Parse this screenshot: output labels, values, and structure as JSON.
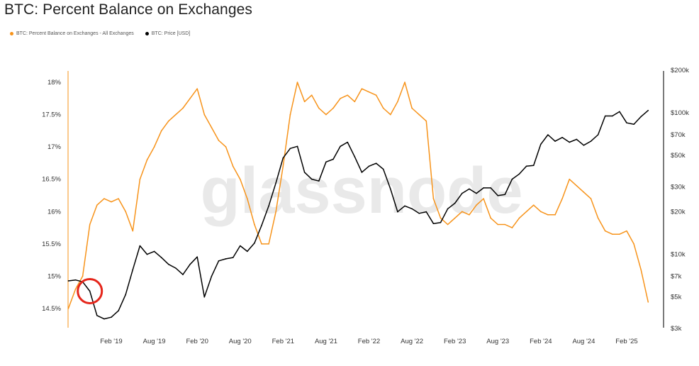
{
  "title": "BTC: Percent Balance on Exchanges",
  "watermark": "glassnode",
  "legend": [
    {
      "label": "BTC: Percent Balance on Exchanges - All Exchanges",
      "color": "#f7931a"
    },
    {
      "label": "BTC: Price [USD]",
      "color": "#000000"
    }
  ],
  "chart_data": {
    "type": "line",
    "title": "BTC: Percent Balance on Exchanges",
    "x_ticks": [
      "Feb '19",
      "Aug '19",
      "Feb '20",
      "Aug '20",
      "Feb '21",
      "Aug '21",
      "Feb '22",
      "Aug '22",
      "Feb '23",
      "Aug '23",
      "Feb '24",
      "Aug '24",
      "Feb '25"
    ],
    "x_range": [
      "2018-08",
      "2025-06"
    ],
    "left_axis": {
      "ticks": [
        "18%",
        "17.5%",
        "17%",
        "16.5%",
        "16%",
        "15.5%",
        "15%",
        "14.5%"
      ],
      "range": [
        14.5,
        18.2
      ]
    },
    "right_axis": {
      "ticks": [
        "$200k",
        "$100k",
        "$70k",
        "$50k",
        "$30k",
        "$20k",
        "$10k",
        "$7k",
        "$5k",
        "$3k"
      ],
      "scale": "log",
      "range": [
        3000,
        200000
      ]
    },
    "annotation": {
      "type": "circle",
      "color": "#e5261b",
      "date": "2018-11"
    },
    "series": [
      {
        "name": "BTC: Percent Balance on Exchanges - All Exchanges",
        "color": "#f7931a",
        "axis": "left",
        "points": [
          [
            "2018-08",
            14.5
          ],
          [
            "2018-09",
            14.8
          ],
          [
            "2018-10",
            15.0
          ],
          [
            "2018-11",
            15.8
          ],
          [
            "2018-12",
            16.1
          ],
          [
            "2019-01",
            16.2
          ],
          [
            "2019-02",
            16.15
          ],
          [
            "2019-03",
            16.2
          ],
          [
            "2019-04",
            16.0
          ],
          [
            "2019-05",
            15.7
          ],
          [
            "2019-06",
            16.5
          ],
          [
            "2019-07",
            16.8
          ],
          [
            "2019-08",
            17.0
          ],
          [
            "2019-09",
            17.25
          ],
          [
            "2019-10",
            17.4
          ],
          [
            "2019-11",
            17.5
          ],
          [
            "2019-12",
            17.6
          ],
          [
            "2020-01",
            17.75
          ],
          [
            "2020-02",
            17.9
          ],
          [
            "2020-03",
            17.5
          ],
          [
            "2020-04",
            17.3
          ],
          [
            "2020-05",
            17.1
          ],
          [
            "2020-06",
            17.0
          ],
          [
            "2020-07",
            16.7
          ],
          [
            "2020-08",
            16.5
          ],
          [
            "2020-09",
            16.2
          ],
          [
            "2020-10",
            15.8
          ],
          [
            "2020-11",
            15.5
          ],
          [
            "2020-12",
            15.5
          ],
          [
            "2021-01",
            16.0
          ],
          [
            "2021-02",
            16.7
          ],
          [
            "2021-03",
            17.5
          ],
          [
            "2021-04",
            18.0
          ],
          [
            "2021-05",
            17.7
          ],
          [
            "2021-06",
            17.8
          ],
          [
            "2021-07",
            17.6
          ],
          [
            "2021-08",
            17.5
          ],
          [
            "2021-09",
            17.6
          ],
          [
            "2021-10",
            17.75
          ],
          [
            "2021-11",
            17.8
          ],
          [
            "2021-12",
            17.7
          ],
          [
            "2022-01",
            17.9
          ],
          [
            "2022-02",
            17.85
          ],
          [
            "2022-03",
            17.8
          ],
          [
            "2022-04",
            17.6
          ],
          [
            "2022-05",
            17.5
          ],
          [
            "2022-06",
            17.7
          ],
          [
            "2022-07",
            18.0
          ],
          [
            "2022-08",
            17.6
          ],
          [
            "2022-09",
            17.5
          ],
          [
            "2022-10",
            17.4
          ],
          [
            "2022-11",
            16.2
          ],
          [
            "2022-12",
            15.9
          ],
          [
            "2023-01",
            15.8
          ],
          [
            "2023-02",
            15.9
          ],
          [
            "2023-03",
            16.0
          ],
          [
            "2023-04",
            15.95
          ],
          [
            "2023-05",
            16.1
          ],
          [
            "2023-06",
            16.2
          ],
          [
            "2023-07",
            15.9
          ],
          [
            "2023-08",
            15.8
          ],
          [
            "2023-09",
            15.8
          ],
          [
            "2023-10",
            15.75
          ],
          [
            "2023-11",
            15.9
          ],
          [
            "2023-12",
            16.0
          ],
          [
            "2024-01",
            16.1
          ],
          [
            "2024-02",
            16.0
          ],
          [
            "2024-03",
            15.95
          ],
          [
            "2024-04",
            15.95
          ],
          [
            "2024-05",
            16.2
          ],
          [
            "2024-06",
            16.5
          ],
          [
            "2024-07",
            16.4
          ],
          [
            "2024-08",
            16.3
          ],
          [
            "2024-09",
            16.2
          ],
          [
            "2024-10",
            15.9
          ],
          [
            "2024-11",
            15.7
          ],
          [
            "2024-12",
            15.65
          ],
          [
            "2025-01",
            15.65
          ],
          [
            "2025-02",
            15.7
          ],
          [
            "2025-03",
            15.5
          ],
          [
            "2025-04",
            15.1
          ],
          [
            "2025-05",
            14.6
          ]
        ]
      },
      {
        "name": "BTC: Price [USD]",
        "color": "#000000",
        "axis": "right",
        "points": [
          [
            "2018-08",
            6500
          ],
          [
            "2018-09",
            6600
          ],
          [
            "2018-10",
            6400
          ],
          [
            "2018-11",
            5500
          ],
          [
            "2018-12",
            3700
          ],
          [
            "2019-01",
            3500
          ],
          [
            "2019-02",
            3600
          ],
          [
            "2019-03",
            4000
          ],
          [
            "2019-04",
            5200
          ],
          [
            "2019-05",
            7800
          ],
          [
            "2019-06",
            11500
          ],
          [
            "2019-07",
            10000
          ],
          [
            "2019-08",
            10500
          ],
          [
            "2019-09",
            9500
          ],
          [
            "2019-10",
            8500
          ],
          [
            "2019-11",
            8000
          ],
          [
            "2019-12",
            7200
          ],
          [
            "2020-01",
            8500
          ],
          [
            "2020-02",
            9600
          ],
          [
            "2020-03",
            5000
          ],
          [
            "2020-04",
            7000
          ],
          [
            "2020-05",
            9000
          ],
          [
            "2020-06",
            9300
          ],
          [
            "2020-07",
            9500
          ],
          [
            "2020-08",
            11500
          ],
          [
            "2020-09",
            10500
          ],
          [
            "2020-10",
            12000
          ],
          [
            "2020-11",
            16000
          ],
          [
            "2020-12",
            22000
          ],
          [
            "2021-01",
            32000
          ],
          [
            "2021-02",
            48000
          ],
          [
            "2021-03",
            56000
          ],
          [
            "2021-04",
            58000
          ],
          [
            "2021-05",
            38000
          ],
          [
            "2021-06",
            34000
          ],
          [
            "2021-07",
            33000
          ],
          [
            "2021-08",
            45000
          ],
          [
            "2021-09",
            47000
          ],
          [
            "2021-10",
            58000
          ],
          [
            "2021-11",
            62000
          ],
          [
            "2021-12",
            49000
          ],
          [
            "2022-01",
            38000
          ],
          [
            "2022-02",
            42000
          ],
          [
            "2022-03",
            44000
          ],
          [
            "2022-04",
            40000
          ],
          [
            "2022-05",
            29000
          ],
          [
            "2022-06",
            20000
          ],
          [
            "2022-07",
            22000
          ],
          [
            "2022-08",
            21000
          ],
          [
            "2022-09",
            19500
          ],
          [
            "2022-10",
            20000
          ],
          [
            "2022-11",
            16500
          ],
          [
            "2022-12",
            16800
          ],
          [
            "2023-01",
            21000
          ],
          [
            "2023-02",
            23000
          ],
          [
            "2023-03",
            27000
          ],
          [
            "2023-04",
            29000
          ],
          [
            "2023-05",
            27000
          ],
          [
            "2023-06",
            29500
          ],
          [
            "2023-07",
            29500
          ],
          [
            "2023-08",
            26000
          ],
          [
            "2023-09",
            26500
          ],
          [
            "2023-10",
            34000
          ],
          [
            "2023-11",
            37000
          ],
          [
            "2023-12",
            42000
          ],
          [
            "2024-01",
            42500
          ],
          [
            "2024-02",
            60000
          ],
          [
            "2024-03",
            70000
          ],
          [
            "2024-04",
            63000
          ],
          [
            "2024-05",
            67000
          ],
          [
            "2024-06",
            62000
          ],
          [
            "2024-07",
            65000
          ],
          [
            "2024-08",
            59000
          ],
          [
            "2024-09",
            63000
          ],
          [
            "2024-10",
            70000
          ],
          [
            "2024-11",
            95000
          ],
          [
            "2024-12",
            95000
          ],
          [
            "2025-01",
            102000
          ],
          [
            "2025-02",
            85000
          ],
          [
            "2025-03",
            83000
          ],
          [
            "2025-04",
            94000
          ],
          [
            "2025-05",
            104000
          ]
        ]
      }
    ]
  }
}
